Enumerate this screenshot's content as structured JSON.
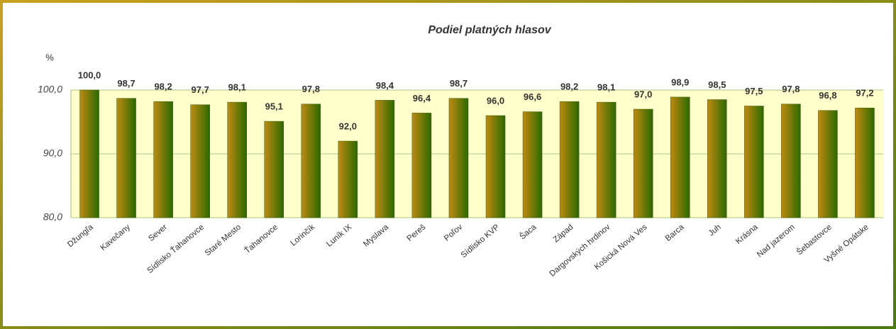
{
  "chart_data": {
    "type": "bar",
    "title": "Podiel platných hlasov",
    "y_label": "%",
    "categories": [
      "Džungľa",
      "Kavečany",
      "Sever",
      "Sídlisko Ťahanovce",
      "Staré Mesto",
      "Ťahanovce",
      "Lorinčík",
      "Luník IX",
      "Myslava",
      "Pereš",
      "Poľov",
      "Sídlisko KVP",
      "Šaca",
      "Západ",
      "Dargovských hrdinov",
      "Košická Nová Ves",
      "Barca",
      "Juh",
      "Krásna",
      "Nad jazerom",
      "Šebastovce",
      "Vyšné Opátske"
    ],
    "values": [
      100.0,
      98.7,
      98.2,
      97.7,
      98.1,
      95.1,
      97.8,
      92.0,
      98.4,
      96.4,
      98.7,
      96.0,
      96.6,
      98.2,
      98.1,
      97.0,
      98.9,
      98.5,
      97.5,
      97.8,
      96.8,
      97.2
    ],
    "value_labels": [
      "100,0",
      "98,7",
      "98,2",
      "97,7",
      "98,1",
      "95,1",
      "97,8",
      "92,0",
      "98,4",
      "96,4",
      "98,7",
      "96,0",
      "96,6",
      "98,2",
      "98,1",
      "97,0",
      "98,9",
      "98,5",
      "97,5",
      "97,8",
      "96,8",
      "97,2"
    ],
    "color": [
      "#c08a10",
      "#2a6a00"
    ],
    "ylim": [
      80,
      100
    ],
    "yticks": [
      {
        "value": 80,
        "label": "80,0"
      },
      {
        "value": 90,
        "label": "90,0"
      },
      {
        "value": 100,
        "label": "100,0"
      }
    ],
    "grid": true
  }
}
